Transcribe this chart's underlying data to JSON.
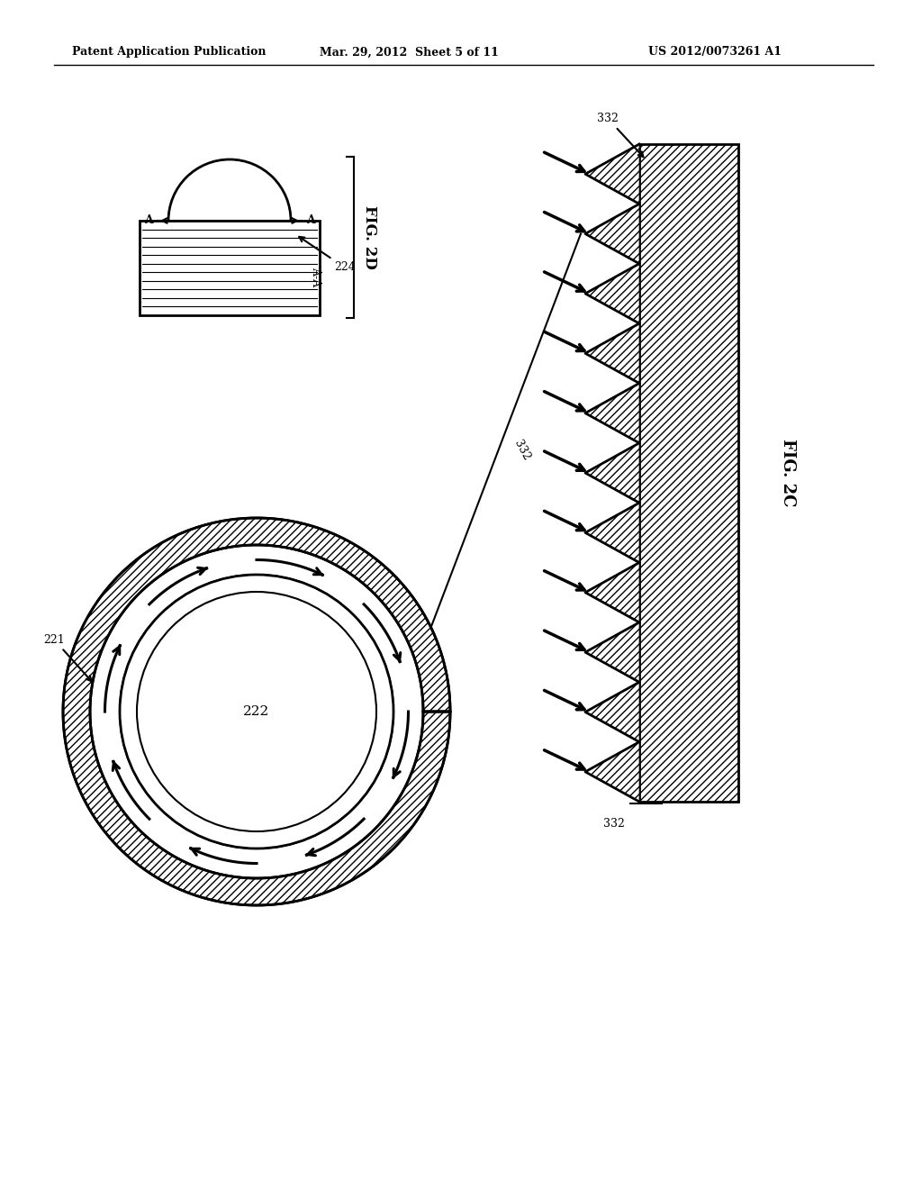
{
  "bg_color": "#ffffff",
  "line_color": "#000000",
  "header_left": "Patent Application Publication",
  "header_mid": "Mar. 29, 2012  Sheet 5 of 11",
  "header_right": "US 2012/0073261 A1",
  "fig2d_label": "FIG. 2D",
  "fig2c_label": "FIG. 2C",
  "label_224": "224",
  "label_222": "222",
  "label_221": "221",
  "label_332a": "332",
  "label_332b": "332",
  "label_AA": "A-A"
}
